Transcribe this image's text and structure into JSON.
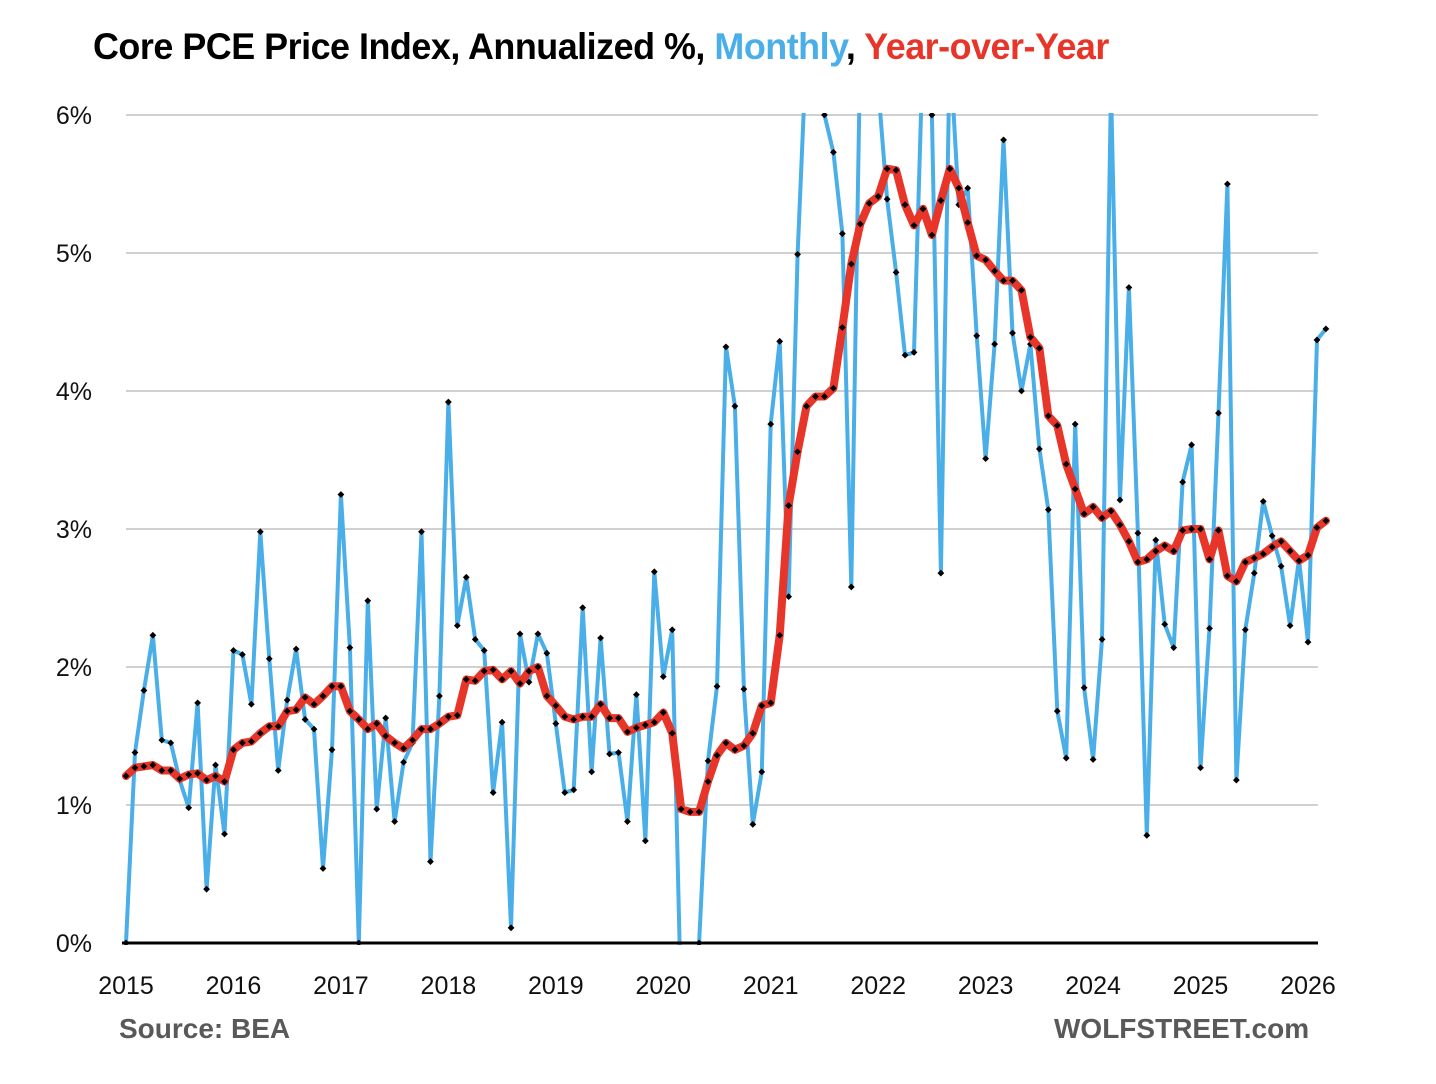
{
  "chart_data": {
    "type": "line",
    "title_parts": [
      {
        "text": "Core PCE Price Index, Annualized %, ",
        "role": "plain"
      },
      {
        "text": "Monthly",
        "role": "monthly"
      },
      {
        "text": ", ",
        "role": "plain"
      },
      {
        "text": "Year-over-Year",
        "role": "yoy"
      }
    ],
    "colors": {
      "monthly": "#4aaee8",
      "yoy": "#e8352a",
      "markers": "#000000",
      "grid": "#d0d0d0",
      "axis": "#000000"
    },
    "ylim": [
      0,
      6
    ],
    "yticks": [
      0,
      1,
      2,
      3,
      4,
      5,
      6
    ],
    "ytick_labels": [
      "0%",
      "1%",
      "2%",
      "3%",
      "4%",
      "5%",
      "6%"
    ],
    "xlim": [
      2015,
      2026
    ],
    "xticks": [
      "2015",
      "2016",
      "2017",
      "2018",
      "2019",
      "2020",
      "2021",
      "2022",
      "2023",
      "2024",
      "2025",
      "2026"
    ],
    "grid": true,
    "start": "2015-01",
    "frequency": "monthly",
    "series": [
      {
        "name": "Monthly",
        "values": [
          0.0,
          1.38,
          1.83,
          2.23,
          1.47,
          1.45,
          1.18,
          0.98,
          1.74,
          0.39,
          1.29,
          0.79,
          2.12,
          2.09,
          1.73,
          2.98,
          2.06,
          1.25,
          1.76,
          2.13,
          1.62,
          1.55,
          0.54,
          1.4,
          3.25,
          2.14,
          0.0,
          2.48,
          0.97,
          1.63,
          0.88,
          1.31,
          1.45,
          2.98,
          0.59,
          1.79,
          3.92,
          2.3,
          2.65,
          2.2,
          2.12,
          1.09,
          1.6,
          0.11,
          2.24,
          1.89,
          2.24,
          2.1,
          1.59,
          1.09,
          1.11,
          2.43,
          1.24,
          2.21,
          1.37,
          1.38,
          0.88,
          1.8,
          0.74,
          2.69,
          1.93,
          2.27,
          -0.5,
          -1.0,
          0.0,
          1.32,
          1.86,
          4.32,
          3.89,
          1.84,
          0.86,
          1.24,
          3.76,
          4.36,
          2.51,
          4.99,
          6.5,
          6.8,
          6.0,
          5.73,
          5.14,
          2.58,
          6.5,
          7.0,
          6.2,
          5.39,
          4.86,
          4.26,
          4.28,
          6.5,
          6.0,
          2.68,
          6.5,
          5.35,
          5.47,
          4.4,
          3.51,
          4.34,
          5.82,
          4.42,
          4.0,
          4.34,
          3.58,
          3.14,
          1.68,
          1.34,
          3.76,
          1.85,
          1.33,
          2.2,
          6.2,
          3.21,
          4.75,
          2.97,
          0.78,
          2.92,
          2.31,
          2.14,
          3.34,
          3.61,
          1.27,
          2.28,
          3.84,
          5.5,
          1.18,
          2.27,
          2.68,
          3.2,
          2.95,
          2.73,
          2.3,
          2.78,
          2.18,
          4.37,
          4.45
        ]
      },
      {
        "name": "Year-over-Year",
        "values": [
          1.21,
          1.27,
          1.28,
          1.29,
          1.25,
          1.25,
          1.19,
          1.22,
          1.23,
          1.18,
          1.21,
          1.17,
          1.4,
          1.45,
          1.46,
          1.52,
          1.57,
          1.57,
          1.68,
          1.69,
          1.78,
          1.73,
          1.79,
          1.86,
          1.86,
          1.68,
          1.62,
          1.55,
          1.59,
          1.5,
          1.45,
          1.41,
          1.47,
          1.55,
          1.55,
          1.59,
          1.64,
          1.65,
          1.91,
          1.9,
          1.97,
          1.98,
          1.91,
          1.97,
          1.88,
          1.97,
          2.0,
          1.79,
          1.72,
          1.64,
          1.62,
          1.64,
          1.64,
          1.73,
          1.63,
          1.63,
          1.53,
          1.56,
          1.58,
          1.6,
          1.67,
          1.52,
          0.97,
          0.95,
          0.95,
          1.17,
          1.36,
          1.45,
          1.4,
          1.43,
          1.52,
          1.72,
          1.74,
          2.23,
          3.17,
          3.56,
          3.89,
          3.96,
          3.96,
          4.02,
          4.46,
          4.92,
          5.21,
          5.36,
          5.41,
          5.61,
          5.6,
          5.35,
          5.2,
          5.32,
          5.13,
          5.38,
          5.61,
          5.47,
          5.22,
          4.98,
          4.95,
          4.87,
          4.8,
          4.8,
          4.73,
          4.39,
          4.31,
          3.82,
          3.75,
          3.47,
          3.29,
          3.11,
          3.16,
          3.08,
          3.13,
          3.03,
          2.91,
          2.76,
          2.78,
          2.84,
          2.88,
          2.84,
          2.99,
          3.0,
          3.0,
          2.78,
          2.99,
          2.66,
          2.62,
          2.76,
          2.79,
          2.82,
          2.87,
          2.91,
          2.84,
          2.77,
          2.81,
          3.01,
          3.06
        ]
      }
    ]
  },
  "footer": {
    "source": "Source: BEA",
    "brand": "WOLFSTREET.com"
  }
}
